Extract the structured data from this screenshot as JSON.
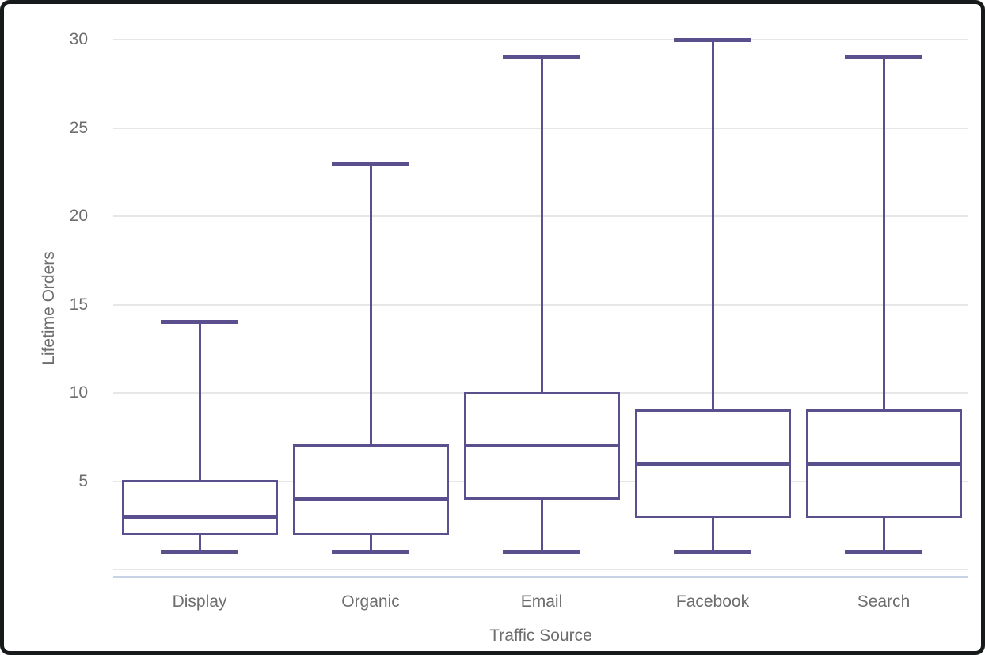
{
  "chart_data": {
    "type": "boxplot",
    "title": "",
    "xlabel": "Traffic Source",
    "ylabel": "Lifetime Orders",
    "categories": [
      "Display",
      "Organic",
      "Email",
      "Facebook",
      "Search"
    ],
    "boxes": [
      {
        "category": "Display",
        "min": 1,
        "q1": 2,
        "median": 3,
        "q3": 5,
        "max": 14
      },
      {
        "category": "Organic",
        "min": 1,
        "q1": 2,
        "median": 4,
        "q3": 7,
        "max": 23
      },
      {
        "category": "Email",
        "min": 1,
        "q1": 4,
        "median": 7,
        "q3": 10,
        "max": 29
      },
      {
        "category": "Facebook",
        "min": 1,
        "q1": 3,
        "median": 6,
        "q3": 9,
        "max": 30
      },
      {
        "category": "Search",
        "min": 1,
        "q1": 3,
        "median": 6,
        "q3": 9,
        "max": 29
      }
    ],
    "y_ticks": [
      30,
      25,
      20,
      15,
      10,
      5
    ],
    "y_gridlines": [
      30,
      25,
      20,
      15,
      10,
      5,
      0
    ],
    "ylim": [
      0,
      30
    ],
    "grid": "horizontal",
    "legend": "none",
    "colors": {
      "box_stroke": "#5c4f8e",
      "gridline": "#e7e7e7",
      "axis_line": "#c7d4e6",
      "label_text": "#6d6d6d",
      "frame": "#161a1a",
      "background": "#ffffff"
    }
  }
}
